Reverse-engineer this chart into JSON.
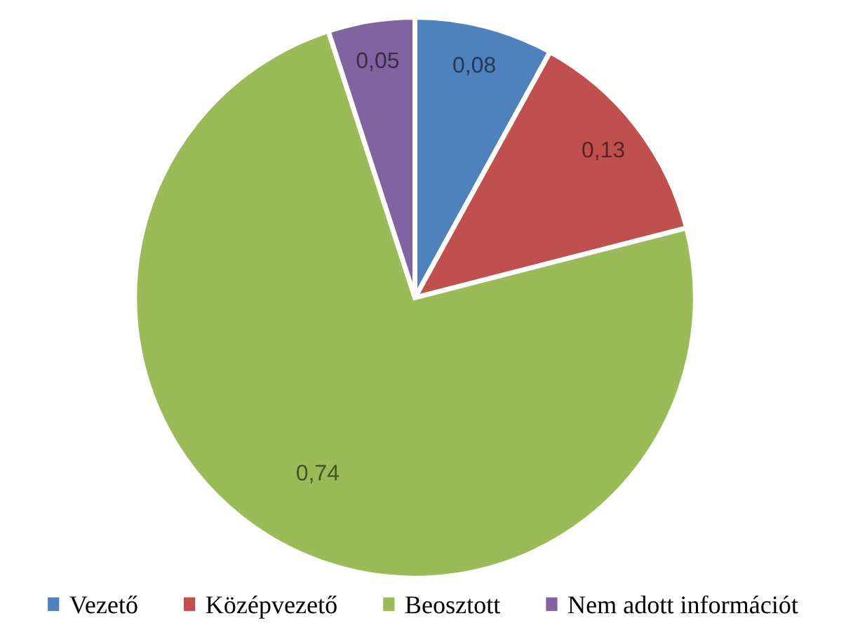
{
  "chart_data": {
    "type": "pie",
    "categories": [
      "Vezető",
      "Középvezető",
      "Beosztott",
      "Nem adott információt"
    ],
    "values": [
      0.08,
      0.13,
      0.74,
      0.05
    ],
    "colors": [
      "#4f81bd",
      "#c0504d",
      "#9bbb59",
      "#8064a2"
    ],
    "value_labels": [
      "0,08",
      "0,13",
      "0,74",
      "0,05"
    ],
    "legend": "bottom"
  }
}
